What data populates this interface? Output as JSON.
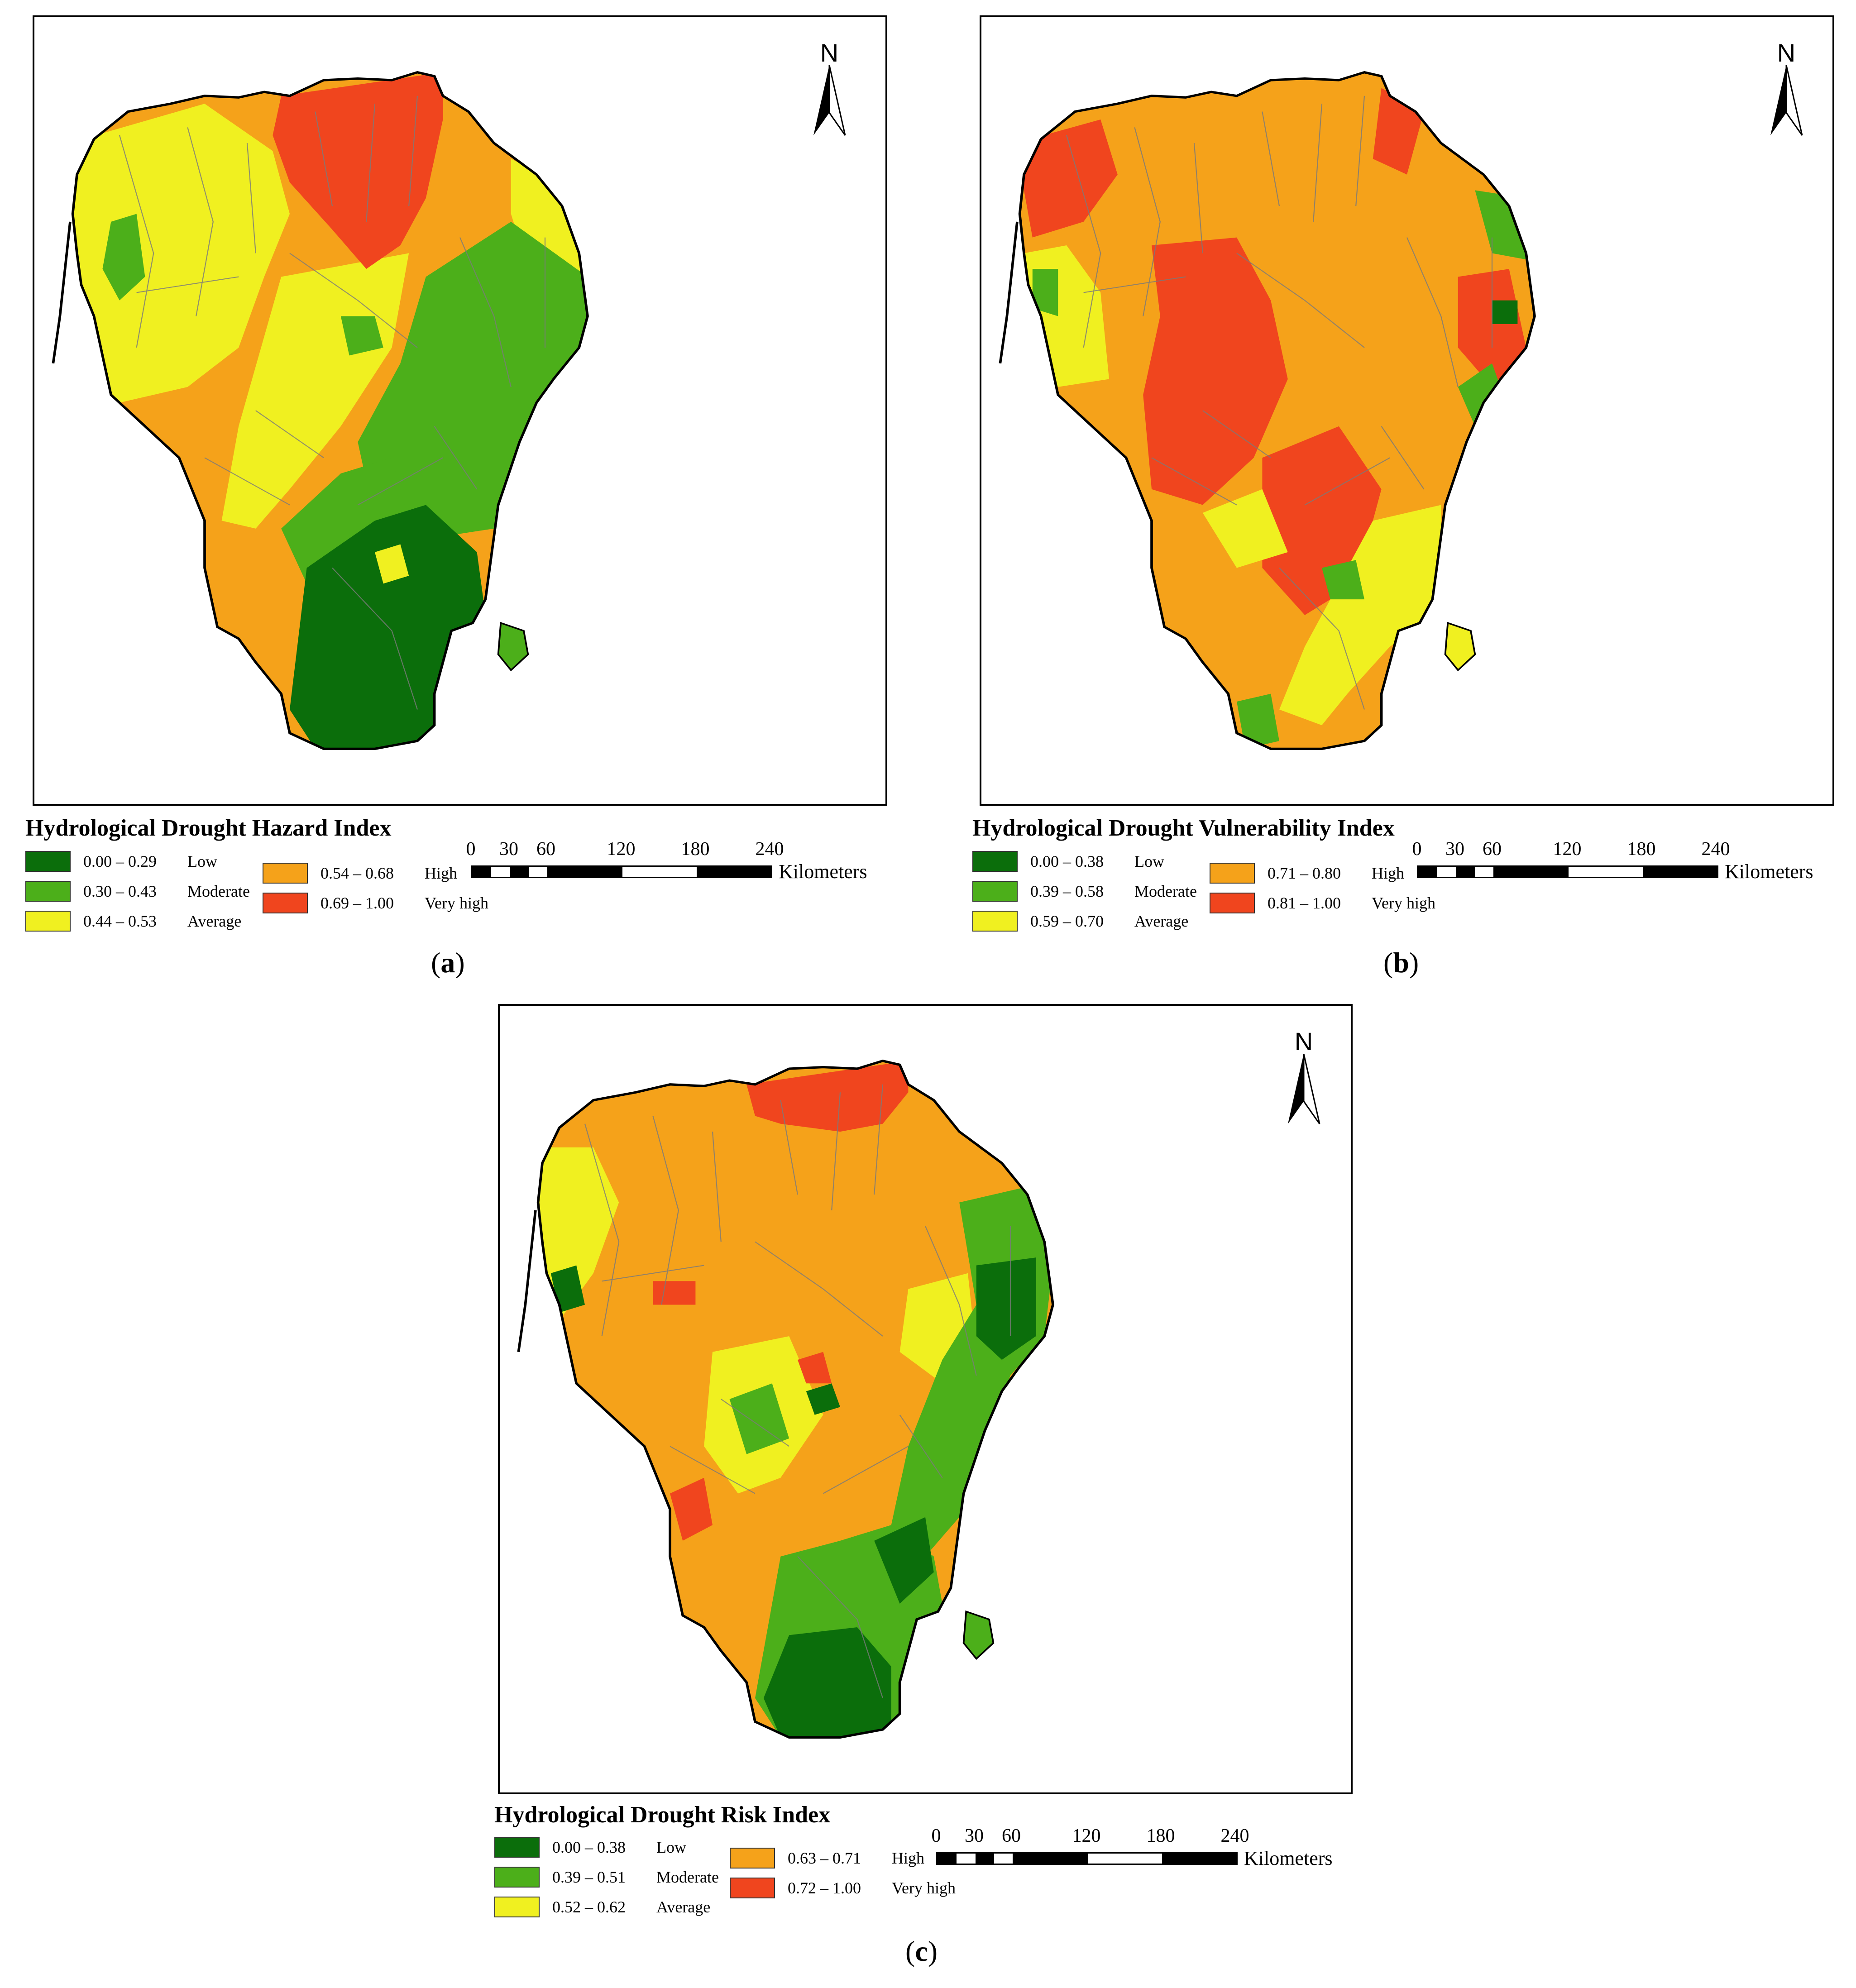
{
  "panels": [
    {
      "id": "a",
      "caption": "a",
      "title": "Hydrological Drought Hazard Index",
      "north_label": "N",
      "legend": [
        {
          "range": "0.00 – 0.29",
          "label": "Low",
          "color": "#0b6e0b"
        },
        {
          "range": "0.30 – 0.43",
          "label": "Moderate",
          "color": "#4caf1a"
        },
        {
          "range": "0.44 – 0.53",
          "label": "Average",
          "color": "#f0f020"
        },
        {
          "range": "0.54 – 0.68",
          "label": "High",
          "color": "#f5a21a"
        },
        {
          "range": "0.69 – 1.00",
          "label": "Very high",
          "color": "#f0451e"
        }
      ],
      "scale": {
        "ticks": [
          "0",
          "30",
          "60",
          "120",
          "180",
          "240"
        ],
        "unit": "Kilometers"
      }
    },
    {
      "id": "b",
      "caption": "b",
      "title": "Hydrological Drought Vulnerability Index",
      "north_label": "N",
      "legend": [
        {
          "range": "0.00 – 0.38",
          "label": "Low",
          "color": "#0b6e0b"
        },
        {
          "range": "0.39 – 0.58",
          "label": "Moderate",
          "color": "#4caf1a"
        },
        {
          "range": "0.59 – 0.70",
          "label": "Average",
          "color": "#f0f020"
        },
        {
          "range": "0.71 – 0.80",
          "label": "High",
          "color": "#f5a21a"
        },
        {
          "range": "0.81 – 1.00",
          "label": "Very high",
          "color": "#f0451e"
        }
      ],
      "scale": {
        "ticks": [
          "0",
          "30",
          "60",
          "120",
          "180",
          "240"
        ],
        "unit": "Kilometers"
      }
    },
    {
      "id": "c",
      "caption": "c",
      "title": "Hydrological Drought Risk Index",
      "north_label": "N",
      "legend": [
        {
          "range": "0.00 – 0.38",
          "label": "Low",
          "color": "#0b6e0b"
        },
        {
          "range": "0.39 – 0.51",
          "label": "Moderate",
          "color": "#4caf1a"
        },
        {
          "range": "0.52 – 0.62",
          "label": "Average",
          "color": "#f0f020"
        },
        {
          "range": "0.63 – 0.71",
          "label": "High",
          "color": "#f5a21a"
        },
        {
          "range": "0.72 – 1.00",
          "label": "Very high",
          "color": "#f0451e"
        }
      ],
      "scale": {
        "ticks": [
          "0",
          "30",
          "60",
          "120",
          "180",
          "240"
        ],
        "unit": "Kilometers"
      }
    }
  ]
}
